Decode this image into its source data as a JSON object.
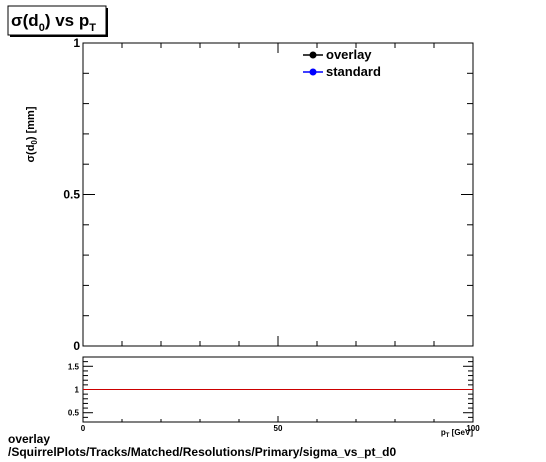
{
  "title": {
    "main": "σ(d",
    "sub1": "0",
    "mid": ") vs p",
    "sub2": "T"
  },
  "legend": [
    {
      "label": "overlay",
      "color": "#000000"
    },
    {
      "label": "standard",
      "color": "#0000ff"
    }
  ],
  "footer": {
    "line1": "overlay",
    "line2": "/SquirrelPlots/Tracks/Matched/Resolutions/Primary/sigma_vs_pt_d0"
  },
  "chart_data": [
    {
      "type": "line",
      "title": "σ(d0) vs pT",
      "ylabel": "σ(d0) [mm]",
      "xlabel": "pT [GeV]",
      "xlim": [
        0,
        100
      ],
      "ylim": [
        0,
        1
      ],
      "y_ticks": [
        "0",
        "0.5",
        "1"
      ],
      "series": [
        {
          "name": "overlay",
          "x": [],
          "y": []
        },
        {
          "name": "standard",
          "x": [],
          "y": []
        }
      ],
      "legend_position": "top-right"
    },
    {
      "type": "line",
      "title": "",
      "xlabel": "pT [GeV]",
      "ylabel": "",
      "xlim": [
        0,
        100
      ],
      "ylim": [
        0.3,
        1.7
      ],
      "x_ticks": [
        "0",
        "50",
        "100"
      ],
      "y_ticks": [
        "0.5",
        "1",
        "1.5"
      ],
      "reference_line": {
        "y": 1,
        "color": "#cc0000"
      },
      "series": []
    }
  ]
}
